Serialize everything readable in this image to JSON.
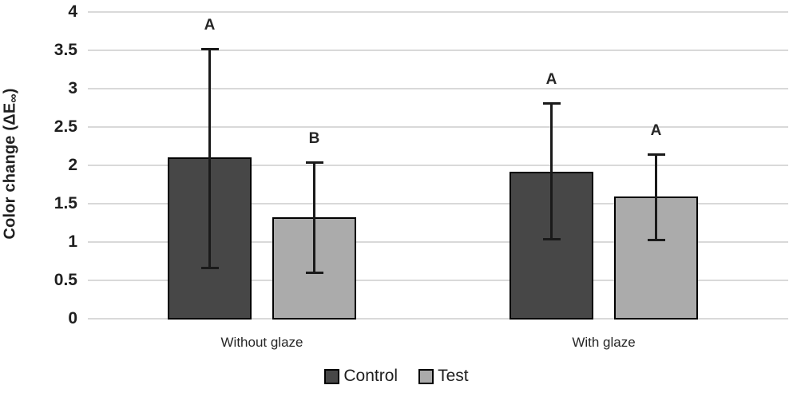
{
  "chart_data": {
    "type": "bar",
    "title": "",
    "xlabel": "",
    "ylabel": "Color change (ΔE∞)",
    "ylabel_parts": {
      "pre": "Color change (ΔE",
      "sub": "∞",
      "post": ")"
    },
    "categories": [
      "Without glaze",
      "With glaze"
    ],
    "series": [
      {
        "name": "Control",
        "color": "#474747",
        "values": [
          2.1,
          1.92
        ],
        "error_upper": [
          3.52,
          2.81
        ],
        "error_lower": [
          0.66,
          1.03
        ],
        "sig_letters": [
          "A",
          "A"
        ]
      },
      {
        "name": "Test",
        "color": "#ababab",
        "values": [
          1.32,
          1.59
        ],
        "error_upper": [
          2.04,
          2.15
        ],
        "error_lower": [
          0.59,
          1.02
        ],
        "sig_letters": [
          "B",
          "A"
        ]
      }
    ],
    "ylim": [
      0,
      4
    ],
    "yticks": [
      "0",
      "0.5",
      "1",
      "1.5",
      "2",
      "2.5",
      "3",
      "3.5",
      "4"
    ],
    "grid": true,
    "legend_position": "bottom",
    "colors": {
      "grid": "#d9d9d9",
      "bar_border": "#000000",
      "error_bar": "#1a1a1a",
      "text": "#262626",
      "background": "#ffffff"
    }
  }
}
